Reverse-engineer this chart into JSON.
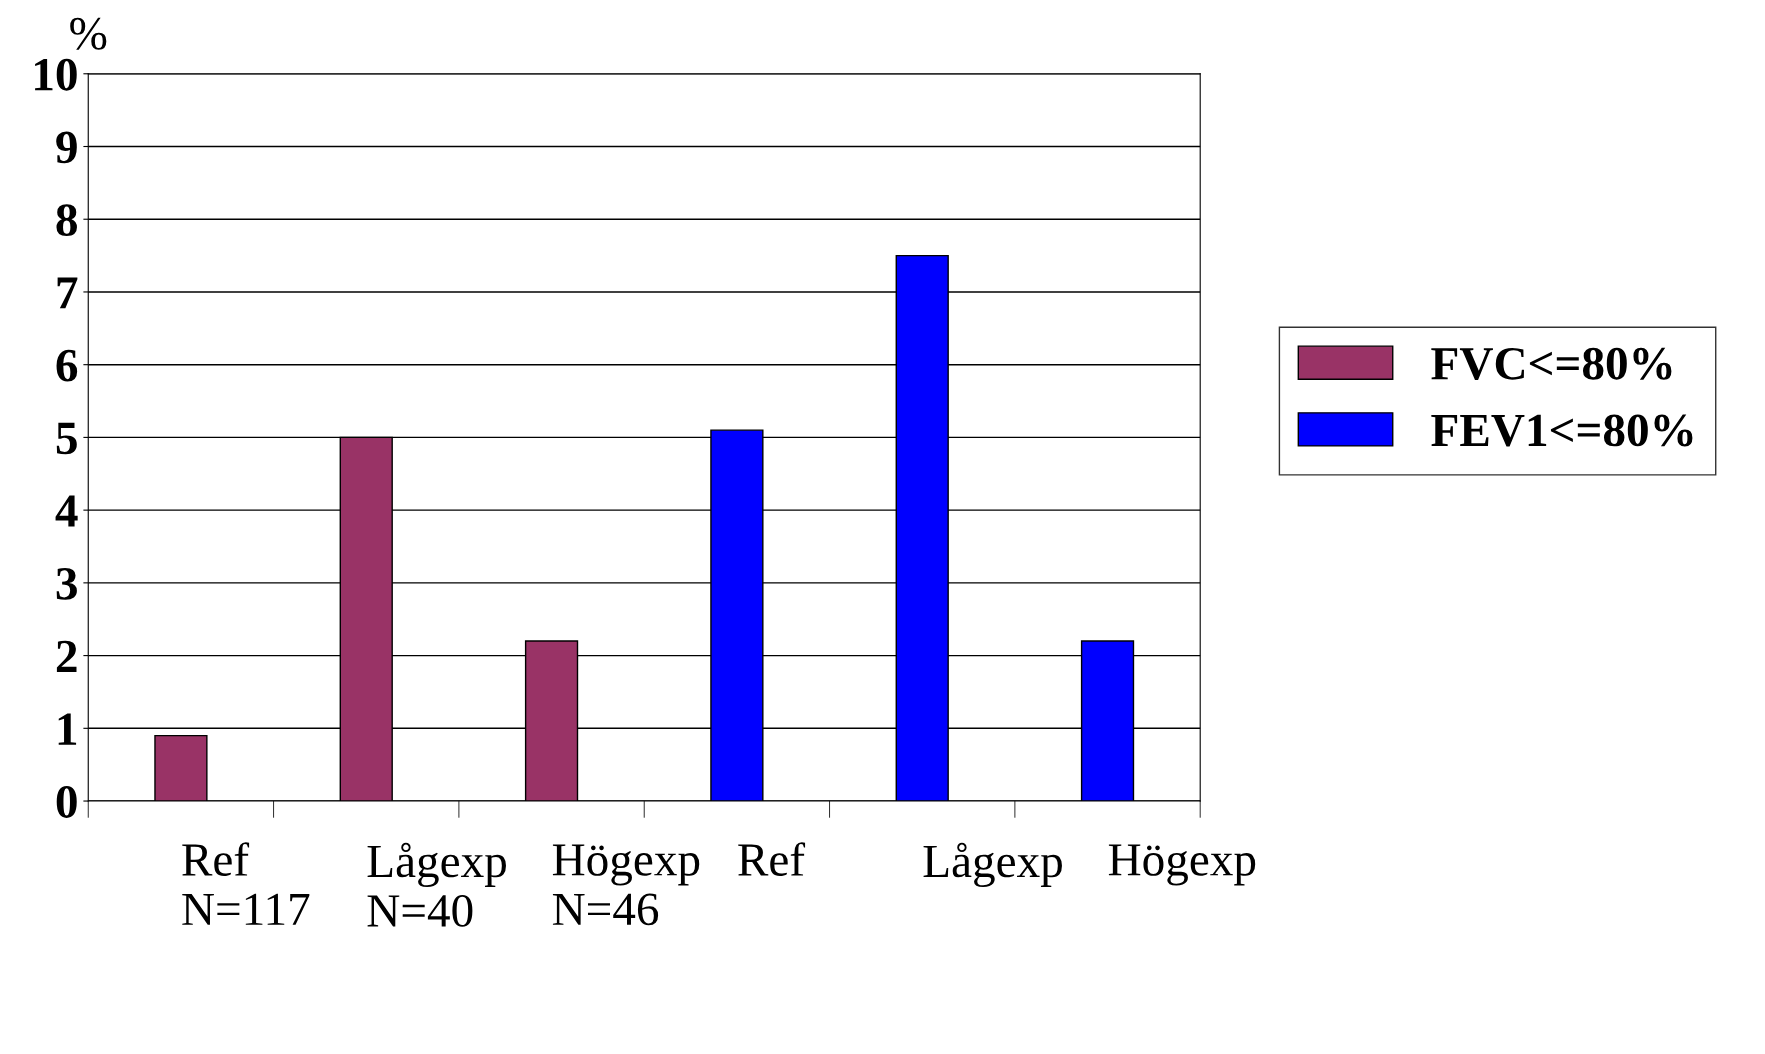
{
  "chart_data": {
    "type": "bar",
    "ylabel": "%",
    "categories": [
      "Ref\nN=117",
      "Lågexp\nN=40",
      "Högexp\nN=46",
      "Ref",
      "Lågexp",
      "Högexp"
    ],
    "series": [
      {
        "name": "FVC<=80%",
        "color": "#993366",
        "values": [
          0.9,
          5.0,
          2.2,
          null,
          null,
          null
        ]
      },
      {
        "name": "FEV1<=80%",
        "color": "#0000ff",
        "values": [
          null,
          null,
          null,
          5.1,
          7.5,
          2.2
        ]
      }
    ],
    "ylim": [
      0,
      10
    ],
    "yticks": [
      0,
      1,
      2,
      3,
      4,
      5,
      6,
      7,
      8,
      9,
      10
    ],
    "grid": "y",
    "legend": "right"
  }
}
